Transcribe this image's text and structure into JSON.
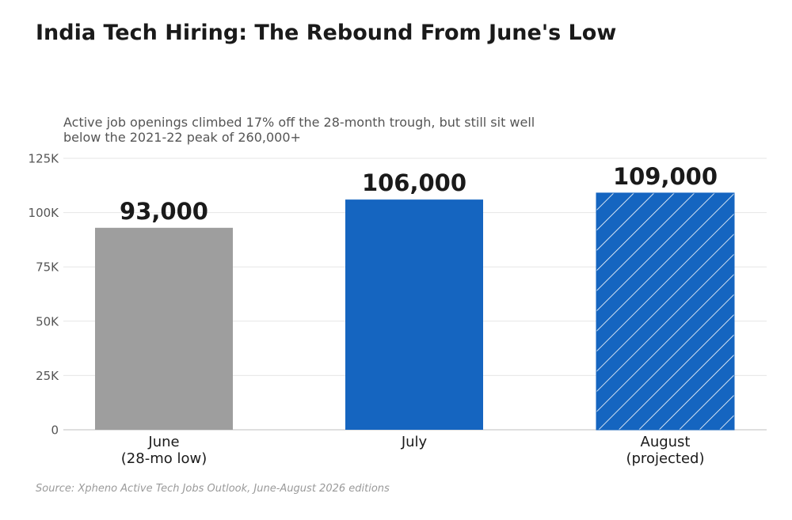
{
  "header": {
    "title": "India Tech Hiring: The Rebound From June's Low",
    "subtitle": "Active job openings climbed 17% off the 28-month trough, but still sit well below the 2021-22 peak of 260,000+",
    "source": "Source: Xpheno Active Tech Jobs Outlook, June-August 2026 editions"
  },
  "colors": {
    "june": "#9e9e9e",
    "july": "#1565c0",
    "august": "#1565c0",
    "hatch": "#ffffff",
    "grid": "#e6e6e6",
    "axis": "#cccccc",
    "tick_text": "#555555",
    "value_text": "#1a1a1a"
  },
  "chart_data": {
    "type": "bar",
    "title": "India Tech Hiring: The Rebound From June's Low",
    "subtitle": "Active job openings climbed 17% off the 28-month trough, but still sit well below the 2021-22 peak of 260,000+",
    "categories": [
      [
        "June",
        "(28-mo low)"
      ],
      [
        "July"
      ],
      [
        "August",
        "(projected)"
      ]
    ],
    "values": [
      93000,
      106000,
      109000
    ],
    "value_labels": [
      "93,000",
      "106,000",
      "109,000"
    ],
    "bar_styles": [
      "solid-gray",
      "solid-blue",
      "hatched-blue"
    ],
    "ylim": [
      0,
      125000
    ],
    "yticks": [
      0,
      25000,
      50000,
      75000,
      100000,
      125000
    ],
    "ytick_labels": [
      "0",
      "25K",
      "50K",
      "75K",
      "100K",
      "125K"
    ],
    "grid": true,
    "legend": "none",
    "xlabel": "",
    "ylabel": ""
  }
}
